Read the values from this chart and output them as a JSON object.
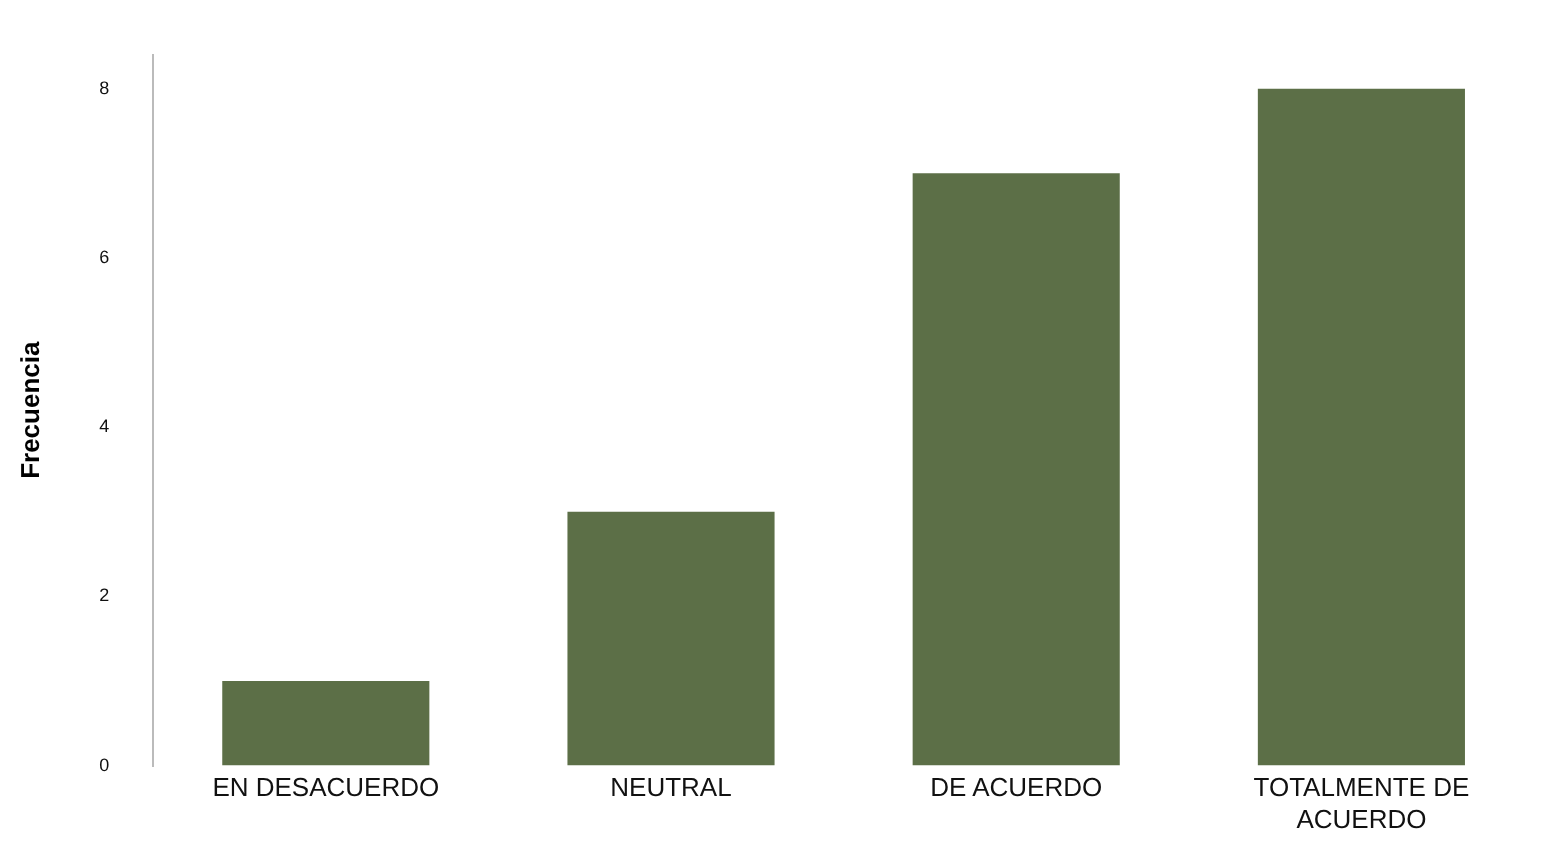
{
  "chart_data": {
    "type": "bar",
    "ylabel": "Frecuencia",
    "categories": [
      "EN DESACUERDO",
      "NEUTRAL",
      "DE ACUERDO",
      "TOTALMENTE DE ACUERDO"
    ],
    "values": [
      1,
      3,
      7,
      8
    ],
    "color": "#5c6f47",
    "ylim": [
      0,
      8.4
    ],
    "yticks": [
      0,
      2,
      4,
      6,
      8
    ],
    "grid": false,
    "legend": false
  }
}
